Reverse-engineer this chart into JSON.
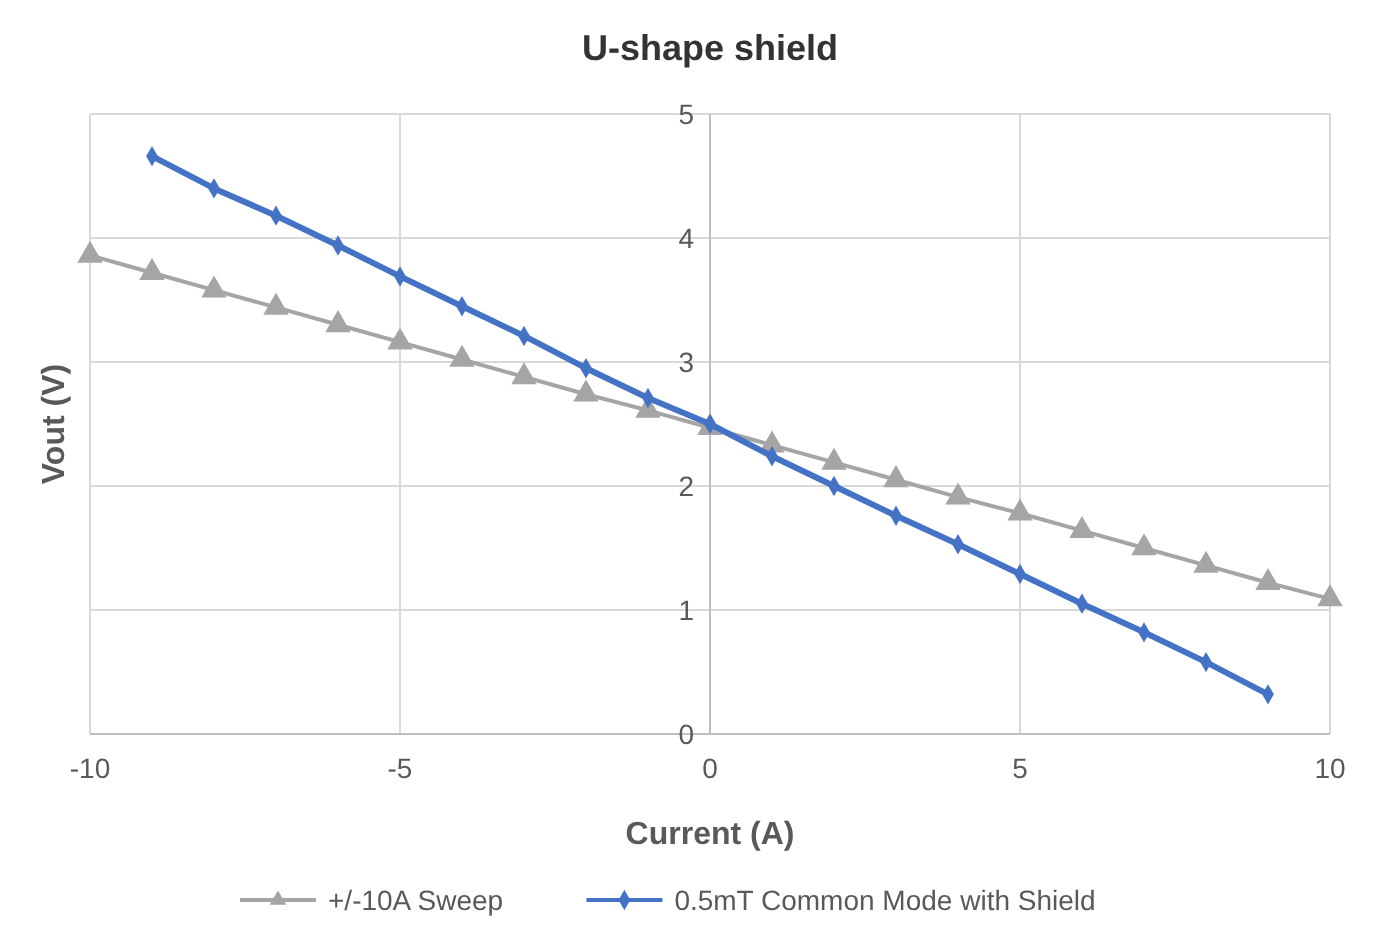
{
  "chart_data": {
    "type": "line",
    "title": "U-shape shield",
    "xlabel": "Current (A)",
    "ylabel": "Vout (V)",
    "xlim": [
      -10,
      10
    ],
    "xticks": [
      -10,
      -5,
      0,
      5,
      10
    ],
    "ylim": [
      0,
      5
    ],
    "yticks": [
      0,
      1,
      2,
      3,
      4,
      5
    ],
    "grid": true,
    "legend": "bottom",
    "line_style": "solid",
    "series": [
      {
        "name": "+/-10A Sweep",
        "color": "#a5a5a5",
        "marker": "triangle",
        "x": [
          -10,
          -9,
          -8,
          -7,
          -6,
          -5,
          -4,
          -3,
          -2,
          -1,
          0,
          1,
          2,
          3,
          4,
          5,
          6,
          7,
          8,
          9,
          10
        ],
        "values": [
          3.86,
          3.72,
          3.58,
          3.44,
          3.3,
          3.16,
          3.02,
          2.88,
          2.74,
          2.61,
          2.47,
          2.33,
          2.19,
          2.05,
          1.91,
          1.78,
          1.64,
          1.5,
          1.36,
          1.22,
          1.09
        ]
      },
      {
        "name": "0.5mT Common Mode with Shield",
        "color": "#4472c4",
        "marker": "diamond",
        "x": [
          -9,
          -8,
          -7,
          -6,
          -5,
          -4,
          -3,
          -2,
          -1,
          0,
          1,
          2,
          3,
          4,
          5,
          6,
          7,
          8,
          9
        ],
        "values": [
          4.66,
          4.4,
          4.18,
          3.94,
          3.69,
          3.45,
          3.21,
          2.95,
          2.71,
          2.5,
          2.24,
          2.0,
          1.76,
          1.53,
          1.29,
          1.05,
          0.82,
          0.58,
          0.32
        ]
      }
    ]
  }
}
